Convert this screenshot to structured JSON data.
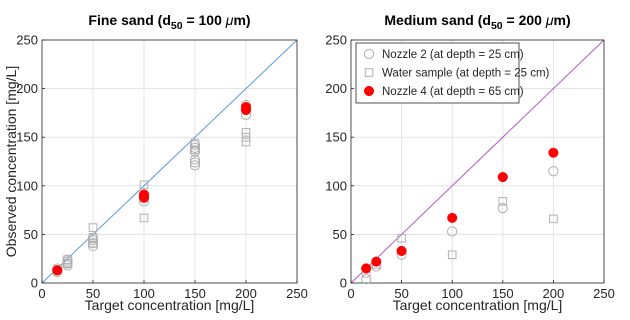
{
  "chart_data": [
    {
      "type": "scatter",
      "title_main": "Fine sand (d",
      "title_sub": "50",
      "title_rest": " = 100 ",
      "title_mu": "μ",
      "title_end": "m)",
      "xlabel": "Target concentration [mg/L]",
      "ylabel": "Observed concentration [mg/L]",
      "xlim": [
        0,
        250
      ],
      "ylim": [
        0,
        250
      ],
      "xticks": [
        "0",
        "50",
        "100",
        "150",
        "200",
        "250"
      ],
      "yticks": [
        "0",
        "50",
        "100",
        "150",
        "200",
        "250"
      ],
      "grid": true,
      "reference_line": {
        "from": [
          0,
          0
        ],
        "to": [
          250,
          250
        ],
        "color": "#5b9bd5"
      },
      "series": [
        {
          "marker": "open-circle",
          "color": "#b0b0b0",
          "x": [
            15,
            15,
            15,
            25,
            25,
            25,
            25,
            50,
            50,
            50,
            50,
            100,
            100,
            100,
            150,
            150,
            150,
            150,
            150,
            150,
            200,
            200,
            200
          ],
          "y": [
            11,
            13,
            15,
            18,
            20,
            22,
            24,
            38,
            41,
            44,
            46,
            84,
            87,
            90,
            121,
            124,
            127,
            135,
            139,
            142,
            173,
            178,
            183
          ]
        },
        {
          "marker": "open-square",
          "color": "#b0b0b0",
          "x": [
            15,
            25,
            25,
            50,
            50,
            50,
            100,
            100,
            150,
            150,
            200,
            200,
            200
          ],
          "y": [
            14,
            20,
            24,
            41,
            47,
            57,
            67,
            101,
            137,
            144,
            145,
            150,
            155
          ]
        },
        {
          "marker": "filled-circle",
          "color": "#ff0000",
          "x": [
            15,
            100,
            100,
            200,
            200
          ],
          "y": [
            13,
            88,
            91,
            178,
            181
          ]
        }
      ]
    },
    {
      "type": "scatter",
      "title_main": "Medium sand (d",
      "title_sub": "50",
      "title_rest": " = 200 ",
      "title_mu": "μ",
      "title_end": "m)",
      "xlabel": "Target concentration [mg/L]",
      "ylabel": "",
      "xlim": [
        0,
        250
      ],
      "ylim": [
        0,
        250
      ],
      "xticks": [
        "0",
        "50",
        "100",
        "150",
        "200",
        "250"
      ],
      "yticks": [
        "0",
        "50",
        "100",
        "150",
        "200",
        "250"
      ],
      "grid": true,
      "legend_placement": "top-left",
      "reference_line": {
        "from": [
          0,
          0
        ],
        "to": [
          250,
          250
        ],
        "color": "#b05fc0"
      },
      "series": [
        {
          "name": "Nozzle 2 (at depth = 25 cm)",
          "marker": "open-circle",
          "color": "#b0b0b0",
          "x": [
            15,
            25,
            50,
            100,
            150,
            200
          ],
          "y": [
            4,
            17,
            29,
            53,
            77,
            115
          ]
        },
        {
          "name": "Water sample (at depth = 25 cm)",
          "marker": "open-square",
          "color": "#b0b0b0",
          "x": [
            15,
            25,
            50,
            100,
            150,
            200
          ],
          "y": [
            10,
            19,
            46,
            29,
            84,
            66
          ]
        },
        {
          "name": "Nozzle 4 (at depth = 65 cm)",
          "marker": "filled-circle",
          "color": "#ff0000",
          "x": [
            15,
            25,
            50,
            100,
            150,
            200
          ],
          "y": [
            15,
            22,
            33,
            67,
            109,
            134
          ]
        }
      ]
    }
  ]
}
